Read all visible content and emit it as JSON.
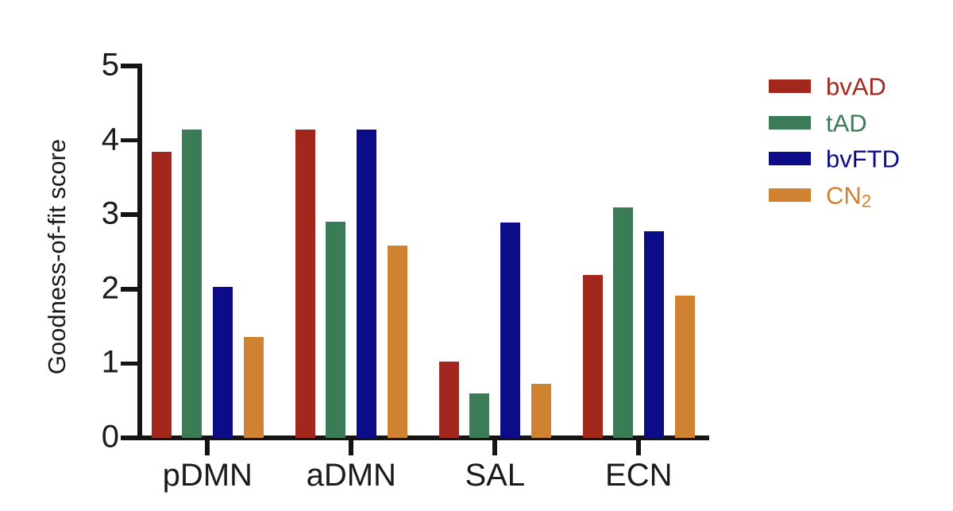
{
  "chart_data": {
    "type": "bar",
    "title": "",
    "xlabel": "",
    "ylabel": "Goodness-of-fit score",
    "ylim": [
      0,
      5
    ],
    "yticks": [
      0,
      1,
      2,
      3,
      4,
      5
    ],
    "grid": false,
    "legend_position": "right",
    "categories": [
      "pDMN",
      "aDMN",
      "SAL",
      "ECN"
    ],
    "series": [
      {
        "name": "bvAD",
        "label": "bvAD",
        "subscript": "",
        "color": "#A3271C",
        "values": [
          3.85,
          4.14,
          1.03,
          2.19
        ]
      },
      {
        "name": "tAD",
        "label": "tAD",
        "subscript": "",
        "color": "#3B7B55",
        "values": [
          4.15,
          2.91,
          0.6,
          3.1
        ]
      },
      {
        "name": "bvFTD",
        "label": "bvFTD",
        "subscript": "",
        "color": "#0C0C88",
        "values": [
          2.03,
          4.14,
          2.89,
          2.78
        ]
      },
      {
        "name": "CN2",
        "label": "CN",
        "subscript": "2",
        "color": "#CF8330",
        "values": [
          1.36,
          2.59,
          0.73,
          1.91
        ]
      }
    ]
  }
}
